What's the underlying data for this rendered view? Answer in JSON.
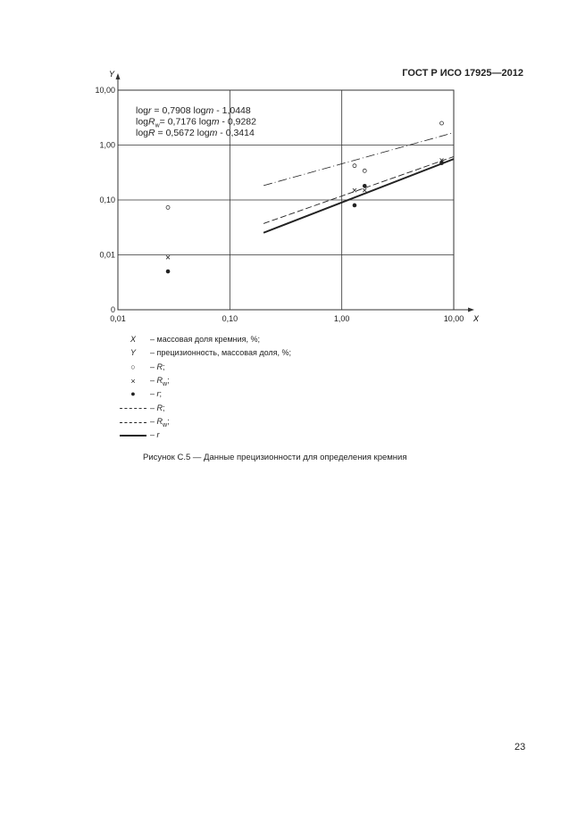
{
  "header": {
    "standard": "ГОСТ Р ИСО 17925—2012"
  },
  "page_number": "23",
  "chart_data": {
    "type": "scatter",
    "x_scale": "log",
    "y_scale": "log",
    "xlabel": "X",
    "ylabel": "Y",
    "xlim": [
      0.01,
      10
    ],
    "ylim": [
      0.001,
      10
    ],
    "x_ticks": [
      {
        "v": 0.01,
        "label": "0,01"
      },
      {
        "v": 0.1,
        "label": "0,10"
      },
      {
        "v": 1,
        "label": "1,00"
      },
      {
        "v": 10,
        "label": "10,00"
      }
    ],
    "y_ticks": [
      {
        "v": 0.001,
        "label": "0"
      },
      {
        "v": 0.01,
        "label": "0,01"
      },
      {
        "v": 0.1,
        "label": "0,10"
      },
      {
        "v": 1,
        "label": "1,00"
      },
      {
        "v": 10,
        "label": "10,00"
      }
    ],
    "grid": true,
    "equations": [
      {
        "prefix": "log",
        "var": "r",
        "sub": "",
        "rest": " = 0,7908 log",
        "m": "m",
        "tail": " - 1,0448"
      },
      {
        "prefix": "log",
        "var": "R",
        "sub": "w",
        "rest": "= 0,7176 log",
        "m": "m",
        "tail": " - 0,9282"
      },
      {
        "prefix": "log",
        "var": "R",
        "sub": "",
        "rest": " = 0,5672 log",
        "m": "m",
        "tail": " - 0,3414"
      }
    ],
    "points": [
      {
        "series": "R",
        "marker": "open-circle",
        "data": [
          [
            0.028,
            0.073
          ],
          [
            1.3,
            0.42
          ],
          [
            1.6,
            0.34
          ],
          [
            7.8,
            2.5
          ]
        ]
      },
      {
        "series": "Rw",
        "marker": "cross",
        "data": [
          [
            0.028,
            0.009
          ],
          [
            1.3,
            0.15
          ],
          [
            1.6,
            0.15
          ],
          [
            7.8,
            0.53
          ]
        ]
      },
      {
        "series": "r",
        "marker": "filled-circle",
        "data": [
          [
            0.028,
            0.005
          ],
          [
            1.3,
            0.08
          ],
          [
            1.6,
            0.18
          ],
          [
            7.8,
            0.47
          ]
        ]
      }
    ],
    "fit_lines": [
      {
        "series": "R",
        "style": "dash-dot",
        "slope": 0.5672,
        "intercept": -0.3414,
        "x_range": [
          0.2,
          10
        ]
      },
      {
        "series": "Rw",
        "style": "dashed",
        "slope": 0.7176,
        "intercept": -0.9282,
        "x_range": [
          0.2,
          10
        ]
      },
      {
        "series": "r",
        "style": "solid-bold",
        "slope": 0.7908,
        "intercept": -1.0448,
        "x_range": [
          0.2,
          10
        ]
      }
    ]
  },
  "legend": [
    {
      "sym": "X",
      "text": "– массовая доля кремния, %;"
    },
    {
      "sym": "Y",
      "text": "– прецизионность, массовая доля, %;"
    },
    {
      "sym": "○",
      "text": "– ",
      "var": "R",
      "sub": "",
      "end": ";"
    },
    {
      "sym": "×",
      "text": "– ",
      "var": "R",
      "sub": "w",
      "end": ";"
    },
    {
      "sym": "●",
      "text": "– ",
      "var": "r",
      "sub": "",
      "end": ";"
    },
    {
      "sym": "dash-dot",
      "text": "– ",
      "var": "R",
      "sub": "",
      "end": ";"
    },
    {
      "sym": "dashed",
      "text": "– ",
      "var": "R",
      "sub": "w",
      "end": ";"
    },
    {
      "sym": "solid",
      "text": "– ",
      "var": "r",
      "sub": "",
      "end": ""
    }
  ],
  "caption": "Рисунок С.5 — Данные прецизионности для определения кремния"
}
